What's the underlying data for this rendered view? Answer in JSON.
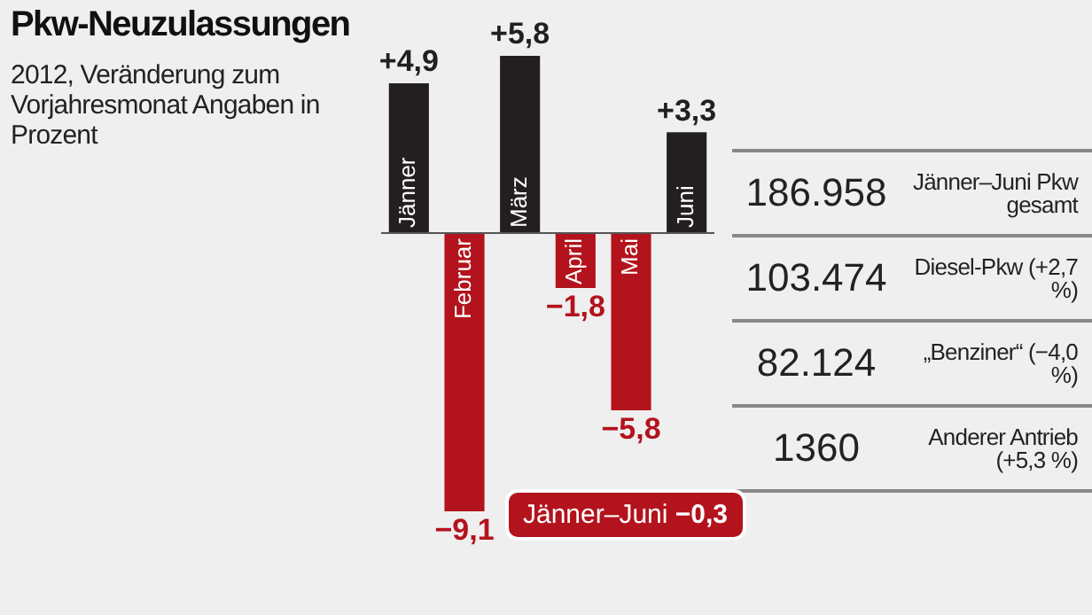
{
  "chart_data": {
    "type": "bar",
    "title": "Pkw-Neuzulassungen",
    "subtitle": "2012, Veränderung zum Vorjahresmonat Angaben in Prozent",
    "categories": [
      "Jänner",
      "Februar",
      "März",
      "April",
      "Mai",
      "Juni"
    ],
    "values": [
      4.9,
      -9.1,
      5.8,
      -1.8,
      -5.8,
      3.3
    ],
    "colors": [
      "#231f20",
      "#b3131d",
      "#231f20",
      "#b3131d",
      "#b3131d",
      "#231f20"
    ],
    "value_labels": [
      "+4,9",
      "−9,1",
      "+5,8",
      "−1,8",
      "−5,8",
      "+3,3"
    ],
    "annotations": [
      "186.958",
      "Jänner–Juni Pkw gesamt",
      "103.474",
      "Diesel-Pkw (+2,7 %)",
      "82.124",
      "„Benziner“ (−4,0 %)",
      "1360",
      "Anderer Antrieb (+5,3 %)",
      "Jänner–Juni −0,3"
    ]
  }
}
